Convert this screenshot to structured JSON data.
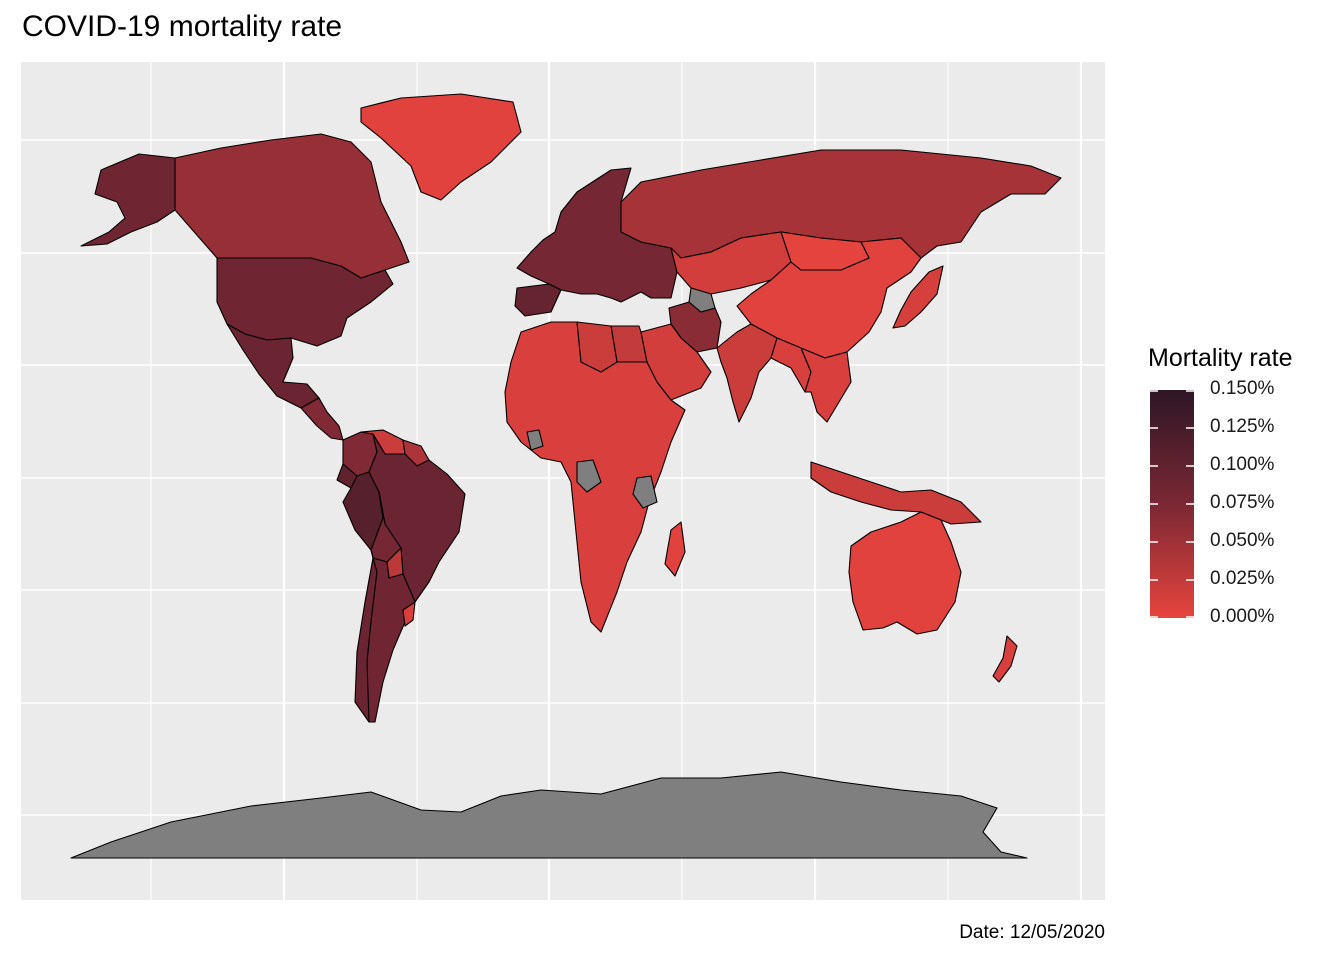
{
  "title": "COVID-19 mortality rate",
  "caption": "Date: 12/05/2020",
  "colors": {
    "panel_bg": "#ebebeb",
    "grid": "#ffffff",
    "no_data": "#7f7f7f",
    "border": "#000000",
    "scale_low": "#e8443e",
    "scale_high": "#2e1626"
  },
  "legend": {
    "title": "Mortality rate",
    "labels": [
      "0.150%",
      "0.125%",
      "0.100%",
      "0.075%",
      "0.050%",
      "0.025%",
      "0.000%"
    ],
    "range": [
      0.0,
      0.15
    ]
  },
  "chart_data": {
    "type": "choropleth",
    "title": "COVID-19 mortality rate",
    "fill_variable": "Mortality rate",
    "units": "%",
    "scale_range": [
      0.0,
      0.15
    ],
    "regions": [
      {
        "name": "United States",
        "value": 0.085
      },
      {
        "name": "Canada",
        "value": 0.055
      },
      {
        "name": "Alaska (US)",
        "value": 0.085
      },
      {
        "name": "Greenland",
        "value": 0.005
      },
      {
        "name": "Mexico",
        "value": 0.09
      },
      {
        "name": "Central America",
        "value": 0.07
      },
      {
        "name": "Colombia",
        "value": 0.07
      },
      {
        "name": "Venezuela",
        "value": 0.02
      },
      {
        "name": "Guyana region",
        "value": 0.04
      },
      {
        "name": "Ecuador",
        "value": 0.1
      },
      {
        "name": "Peru",
        "value": 0.11
      },
      {
        "name": "Brazil",
        "value": 0.09
      },
      {
        "name": "Bolivia",
        "value": 0.08
      },
      {
        "name": "Paraguay",
        "value": 0.03
      },
      {
        "name": "Chile",
        "value": 0.09
      },
      {
        "name": "Argentina",
        "value": 0.085
      },
      {
        "name": "Uruguay",
        "value": 0.01
      },
      {
        "name": "Western Europe",
        "value": 0.08
      },
      {
        "name": "Spain",
        "value": 0.095
      },
      {
        "name": "Russia",
        "value": 0.045
      },
      {
        "name": "Central Asia",
        "value": 0.015
      },
      {
        "name": "China",
        "value": 0.005
      },
      {
        "name": "Mongolia",
        "value": 0.003
      },
      {
        "name": "Iran",
        "value": 0.065
      },
      {
        "name": "India",
        "value": 0.02
      },
      {
        "name": "South Asia east",
        "value": 0.01
      },
      {
        "name": "Southeast Asia",
        "value": 0.01
      },
      {
        "name": "Japan",
        "value": 0.012
      },
      {
        "name": "Africa",
        "value": 0.01
      },
      {
        "name": "Egypt",
        "value": 0.025
      },
      {
        "name": "Libya",
        "value": 0.02
      },
      {
        "name": "Arabian Peninsula",
        "value": 0.015
      },
      {
        "name": "Madagascar",
        "value": 0.005
      },
      {
        "name": "Indonesia",
        "value": 0.02
      },
      {
        "name": "Australia",
        "value": 0.005
      },
      {
        "name": "New Zealand",
        "value": 0.01
      },
      {
        "name": "Turkmenistan",
        "value": null
      },
      {
        "name": "Tanzania",
        "value": null
      },
      {
        "name": "Congo region",
        "value": null
      },
      {
        "name": "Ivory Coast region",
        "value": null
      },
      {
        "name": "Antarctica",
        "value": null
      }
    ]
  }
}
